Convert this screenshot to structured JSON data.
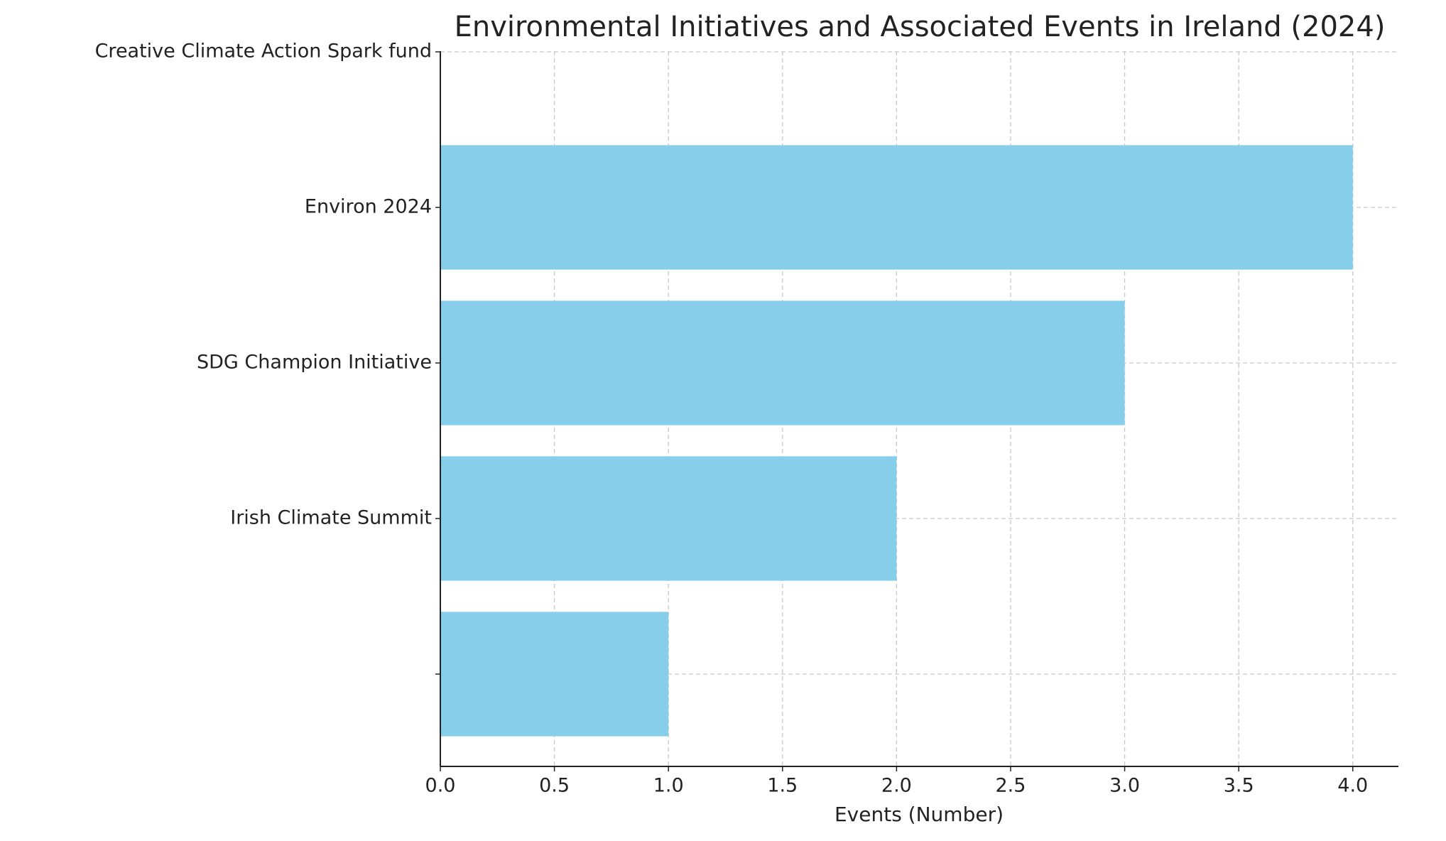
{
  "chart_data": {
    "type": "bar",
    "orientation": "horizontal",
    "title": "Environmental Initiatives and Associated Events in Ireland (2024)",
    "x_label": "Events (Number)",
    "categories": [
      null,
      "Irish Climate Summit",
      "SDG Champion Initiative",
      "Environ 2024",
      "Creative Climate Action Spark fund"
    ],
    "values": [
      1,
      2,
      3,
      4,
      null
    ],
    "color": "#87ceeb",
    "xlim": [
      0,
      4.2
    ],
    "xticks": [
      {
        "value": 0,
        "label": "0.0"
      },
      {
        "value": 0.5,
        "label": "0.5"
      },
      {
        "value": 1,
        "label": "1.0"
      },
      {
        "value": 1.5,
        "label": "1.5"
      },
      {
        "value": 2,
        "label": "2.0"
      },
      {
        "value": 2.5,
        "label": "2.5"
      },
      {
        "value": 3,
        "label": "3.0"
      },
      {
        "value": 3.5,
        "label": "3.5"
      },
      {
        "value": 4,
        "label": "4.0"
      }
    ],
    "grid": true
  }
}
